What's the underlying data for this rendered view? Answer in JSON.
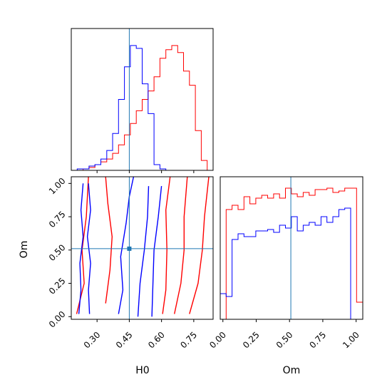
{
  "chart_data": {
    "type": "corner",
    "parameters": [
      "H0",
      "Om"
    ],
    "axis_labels": {
      "H0": "H0",
      "Om": "Om"
    },
    "truth": {
      "H0": 0.45,
      "Om": 0.51
    },
    "ranges": {
      "H0": [
        0.18,
        0.84
      ],
      "Om": [
        -0.02,
        1.05
      ]
    },
    "ticks": {
      "H0": [
        "0.30",
        "0.45",
        "0.60",
        "0.75"
      ],
      "Om": [
        "0.00",
        "0.25",
        "0.50",
        "0.75",
        "1.00"
      ]
    },
    "colors": {
      "red_series": "#ff0000",
      "blue_series": "#0000ff",
      "truth_line": "#1f77b4"
    },
    "hist_H0": {
      "bin_edges": [
        0.18,
        0.2075,
        0.235,
        0.2625,
        0.29,
        0.3175,
        0.345,
        0.3725,
        0.4,
        0.4275,
        0.455,
        0.4825,
        0.51,
        0.5375,
        0.565,
        0.5925,
        0.62,
        0.6475,
        0.675,
        0.7025,
        0.73,
        0.7575,
        0.785,
        0.8125,
        0.84
      ],
      "red": [
        0.0,
        0.0,
        0.01,
        0.02,
        0.04,
        0.06,
        0.08,
        0.12,
        0.18,
        0.25,
        0.33,
        0.42,
        0.5,
        0.56,
        0.66,
        0.79,
        0.85,
        0.88,
        0.83,
        0.7,
        0.6,
        0.28,
        0.07,
        0.0
      ],
      "blue": [
        0.0,
        0.01,
        0.01,
        0.03,
        0.04,
        0.08,
        0.14,
        0.26,
        0.5,
        0.73,
        0.88,
        0.86,
        0.61,
        0.4,
        0.04,
        0.01,
        0.0,
        0.0,
        0.0,
        0.0,
        0.0,
        0.0,
        0.0,
        0.0
      ]
    },
    "hist_Om": {
      "bin_edges": [
        -0.02,
        0.0245,
        0.069,
        0.1135,
        0.158,
        0.2025,
        0.247,
        0.2915,
        0.336,
        0.3805,
        0.425,
        0.4695,
        0.514,
        0.5585,
        0.603,
        0.6475,
        0.692,
        0.7365,
        0.781,
        0.8255,
        0.87,
        0.9145,
        0.959,
        1.0035,
        1.05
      ],
      "red": [
        0.0,
        0.77,
        0.8,
        0.77,
        0.86,
        0.81,
        0.85,
        0.87,
        0.85,
        0.88,
        0.85,
        0.92,
        0.88,
        0.86,
        0.89,
        0.87,
        0.91,
        0.91,
        0.92,
        0.89,
        0.9,
        0.92,
        0.92,
        0.12
      ],
      "blue": [
        0.18,
        0.16,
        0.56,
        0.6,
        0.58,
        0.58,
        0.62,
        0.62,
        0.63,
        0.61,
        0.66,
        0.64,
        0.72,
        0.62,
        0.66,
        0.68,
        0.66,
        0.72,
        0.68,
        0.72,
        0.77,
        0.78,
        0.0,
        0.0
      ]
    },
    "contours_2d": {
      "blue": [
        [
          [
            0.215,
            0.02
          ],
          [
            0.225,
            0.2
          ],
          [
            0.22,
            0.4
          ],
          [
            0.235,
            0.6
          ],
          [
            0.225,
            0.8
          ],
          [
            0.235,
            1.0
          ]
        ],
        [
          [
            0.265,
            0.02
          ],
          [
            0.26,
            0.2
          ],
          [
            0.27,
            0.4
          ],
          [
            0.255,
            0.6
          ],
          [
            0.27,
            0.8
          ],
          [
            0.26,
            1.0
          ]
        ],
        [
          [
            0.4,
            0.02
          ],
          [
            0.42,
            0.2
          ],
          [
            0.41,
            0.45
          ],
          [
            0.435,
            0.7
          ],
          [
            0.45,
            0.9
          ],
          [
            0.47,
            1.05
          ]
        ],
        [
          [
            0.49,
            0.0
          ],
          [
            0.5,
            0.25
          ],
          [
            0.52,
            0.5
          ],
          [
            0.535,
            0.75
          ],
          [
            0.54,
            0.98
          ]
        ],
        [
          [
            0.555,
            0.0
          ],
          [
            0.56,
            0.25
          ],
          [
            0.565,
            0.5
          ],
          [
            0.585,
            0.75
          ],
          [
            0.6,
            0.98
          ]
        ]
      ],
      "red": [
        [
          [
            0.205,
            0.02
          ],
          [
            0.24,
            0.25
          ],
          [
            0.23,
            0.5
          ],
          [
            0.25,
            0.75
          ],
          [
            0.26,
            1.05
          ]
        ],
        [
          [
            0.34,
            0.1
          ],
          [
            0.36,
            0.35
          ],
          [
            0.37,
            0.6
          ],
          [
            0.35,
            0.85
          ],
          [
            0.34,
            1.05
          ]
        ],
        [
          [
            0.605,
            0.02
          ],
          [
            0.62,
            0.2
          ],
          [
            0.625,
            0.5
          ],
          [
            0.62,
            0.8
          ],
          [
            0.64,
            1.05
          ]
        ],
        [
          [
            0.66,
            0.02
          ],
          [
            0.69,
            0.25
          ],
          [
            0.705,
            0.5
          ],
          [
            0.705,
            0.75
          ],
          [
            0.72,
            1.05
          ]
        ],
        [
          [
            0.73,
            0.02
          ],
          [
            0.77,
            0.25
          ],
          [
            0.79,
            0.5
          ],
          [
            0.8,
            0.75
          ],
          [
            0.82,
            1.05
          ]
        ]
      ]
    }
  }
}
